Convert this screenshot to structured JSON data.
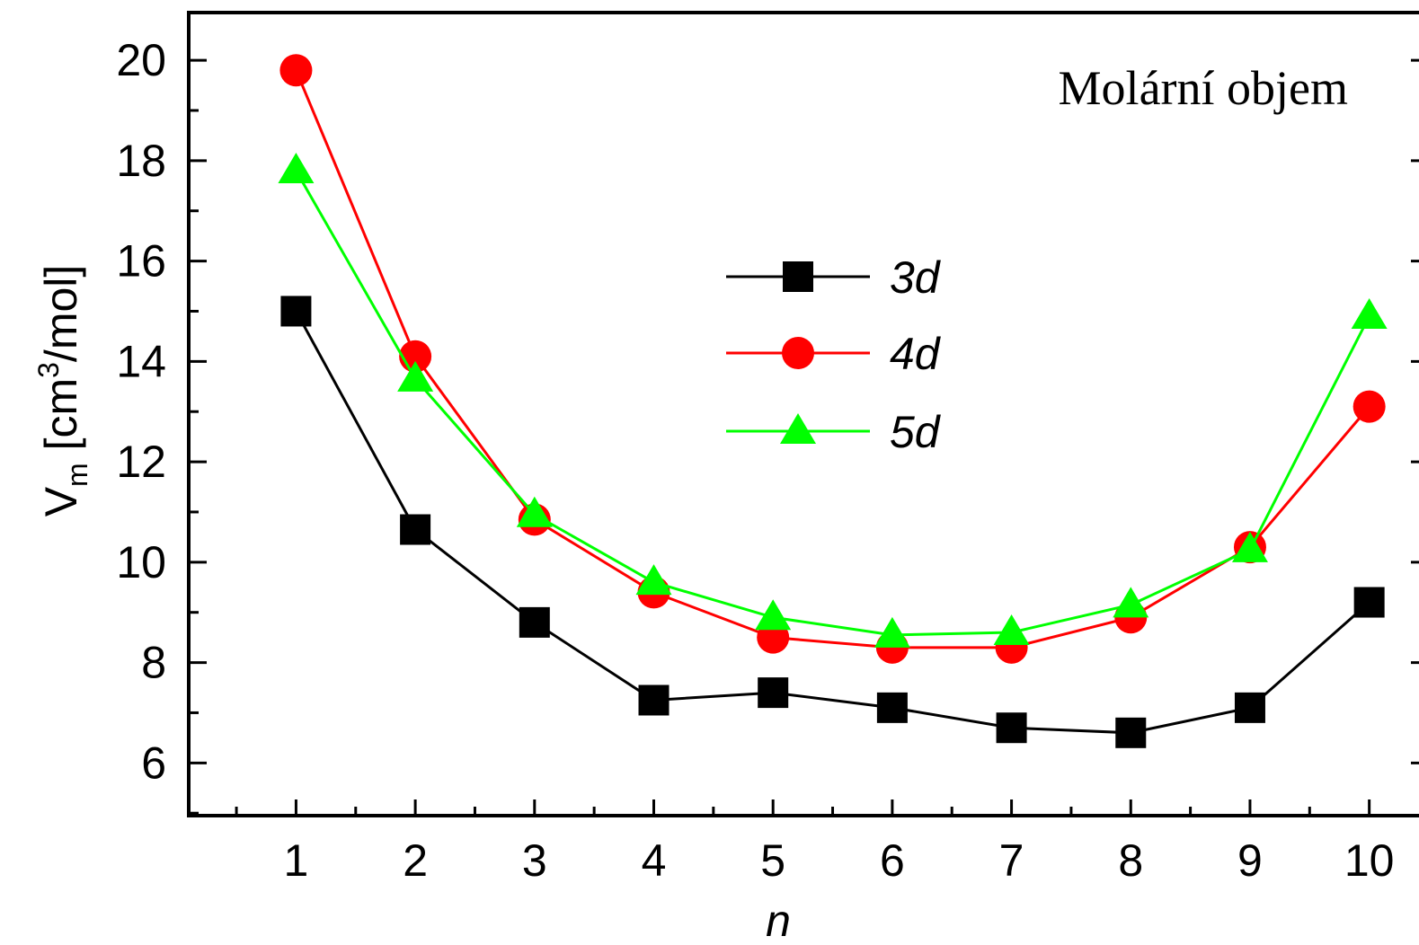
{
  "chart_data": {
    "type": "line",
    "annotation": "Molární objem",
    "xlabel": "n",
    "ylabel_main": "V",
    "ylabel_sub": "m",
    "ylabel_unit_pre": " [cm",
    "ylabel_unit_sup": "3",
    "ylabel_unit_post": "/mol]",
    "x": [
      1,
      2,
      3,
      4,
      5,
      6,
      7,
      8,
      9,
      10
    ],
    "xlim": [
      0.1,
      10.5
    ],
    "ylim": [
      4.95,
      20.95
    ],
    "x_ticks": [
      "1",
      "2",
      "3",
      "4",
      "5",
      "6",
      "7",
      "8",
      "9",
      "10"
    ],
    "y_ticks": [
      "6",
      "8",
      "10",
      "12",
      "14",
      "16",
      "18",
      "20"
    ],
    "grid": false,
    "legend_position": "center",
    "series": [
      {
        "name": "3d",
        "marker": "square",
        "color": "#000000",
        "values": [
          15.0,
          10.65,
          8.8,
          7.25,
          7.4,
          7.1,
          6.7,
          6.6,
          7.1,
          9.2
        ]
      },
      {
        "name": "4d",
        "marker": "circle",
        "color": "#ff0000",
        "values": [
          19.8,
          14.1,
          10.85,
          9.4,
          8.5,
          8.3,
          8.3,
          8.9,
          10.3,
          13.1
        ]
      },
      {
        "name": "5d",
        "marker": "triangle",
        "color": "#00ff00",
        "values": [
          17.8,
          13.65,
          10.95,
          9.6,
          8.9,
          8.55,
          8.6,
          9.15,
          10.25,
          14.9
        ]
      }
    ]
  }
}
